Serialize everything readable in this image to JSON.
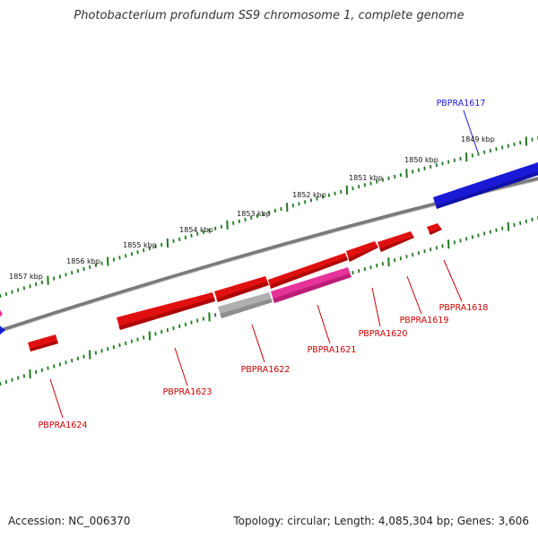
{
  "title": "Photobacterium profundum SS9 chromosome 1, complete genome",
  "accession": "Accession: NC_006370",
  "summary": "Topology: circular; Length: 4,085,304 bp; Genes: 3,606",
  "colors": {
    "forward_gene": "#e01010",
    "reverse_gene": "#1a1ad6",
    "highlight_gene": "#e6339a",
    "pseudo_gene": "#b0b0b0",
    "tick": "#1e7a1e",
    "backbone": "#7a7a7a"
  },
  "scale_labels": [
    "1849 kbp",
    "1850 kbp",
    "1851 kbp",
    "1852 kbp",
    "1853 kbp",
    "1854 kbp",
    "1855 kbp",
    "1856 kbp",
    "1857 kbp"
  ],
  "genes": [
    {
      "name": "PBPRA1617",
      "strand": "reverse",
      "color": "#1a1ad6"
    },
    {
      "name": "PBPRA1618",
      "strand": "forward",
      "color": "#cc0000"
    },
    {
      "name": "PBPRA1619",
      "strand": "forward",
      "color": "#cc0000"
    },
    {
      "name": "PBPRA1620",
      "strand": "forward",
      "color": "#cc0000"
    },
    {
      "name": "PBPRA1621",
      "strand": "forward",
      "color": "#cc0000"
    },
    {
      "name": "PBPRA1622",
      "strand": "forward",
      "color": "#cc0000"
    },
    {
      "name": "PBPRA1623",
      "strand": "forward",
      "color": "#cc0000"
    },
    {
      "name": "PBPRA1624",
      "strand": "forward",
      "color": "#cc0000"
    }
  ]
}
